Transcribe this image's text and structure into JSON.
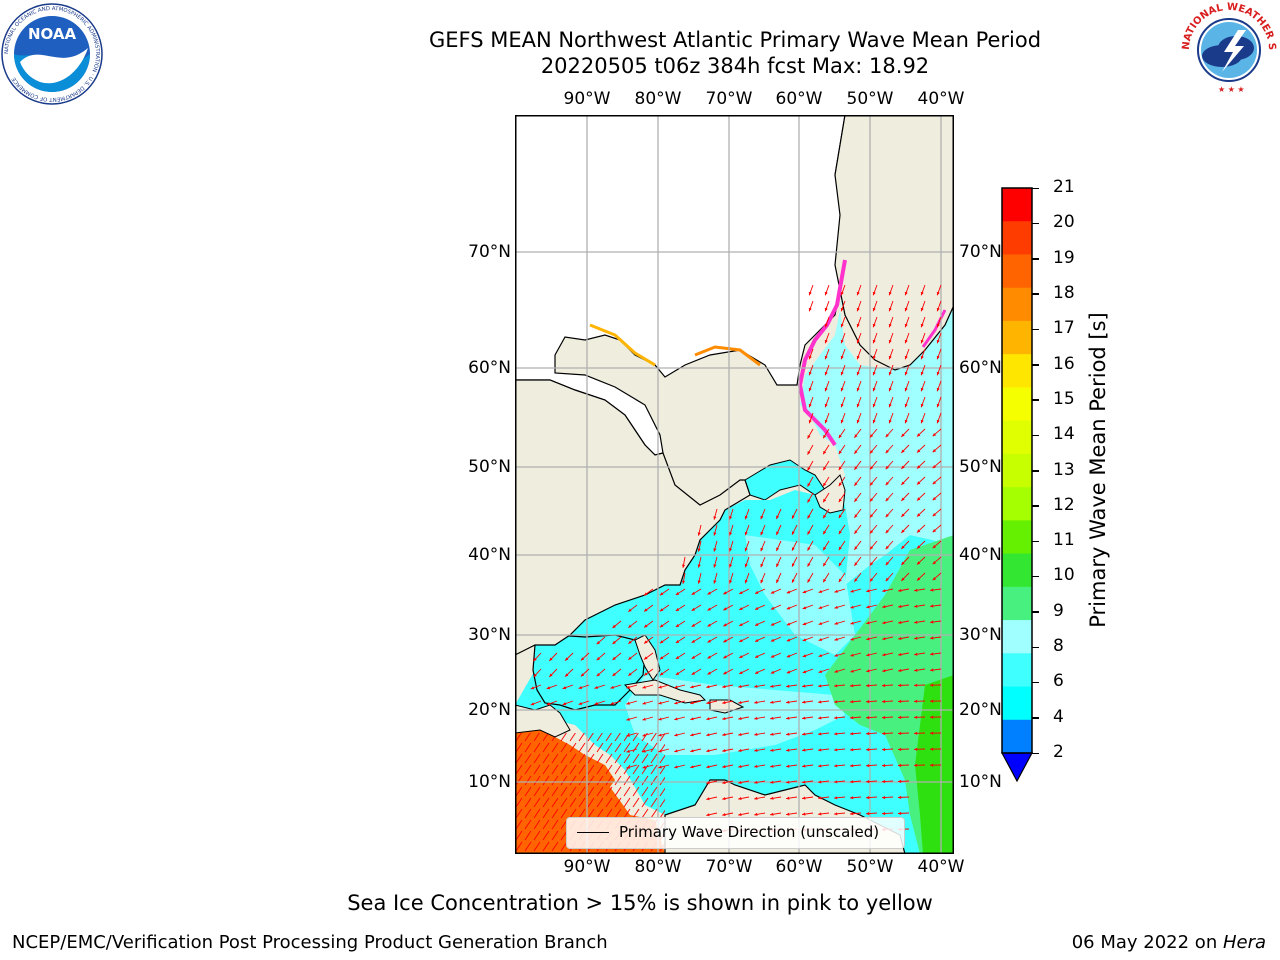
{
  "title": {
    "line1": "GEFS MEAN Northwest Atlantic Primary Wave Mean Period",
    "line2": "20220505 t06z 384h fcst   Max: 18.92"
  },
  "map": {
    "lon_labels": [
      "90°W",
      "80°W",
      "70°W",
      "60°W",
      "50°W",
      "40°W"
    ],
    "lat_labels": [
      "70°N",
      "60°N",
      "50°N",
      "40°N",
      "30°N",
      "20°N",
      "10°N"
    ],
    "legend_label": "Primary Wave Direction (unscaled)",
    "colors": {
      "land": "#efedde",
      "ice_land": "#ffffff",
      "sea_4_6": "#00ffff",
      "sea_6_8": "#40ffff",
      "sea_8_9": "#a0ffff",
      "sea_9_10": "#48f080",
      "sea_10_12": "#2ee010",
      "sea_17_19": "#ff6400",
      "arrows": "#ff0000",
      "ice_edge": "#ff33cc",
      "grid": "#b0b0b0"
    }
  },
  "colorbar": {
    "label": "Primary Wave Mean Period [s]",
    "ticks": [
      "21",
      "20",
      "19",
      "18",
      "17",
      "16",
      "15",
      "14",
      "13",
      "12",
      "11",
      "10",
      "9",
      "8",
      "6",
      "4",
      "2"
    ],
    "colors": [
      "#ff0000",
      "#ff3c00",
      "#ff6400",
      "#ff8c00",
      "#ffb400",
      "#ffe600",
      "#f5ff00",
      "#e0ff00",
      "#c8ff00",
      "#a6ff00",
      "#64f000",
      "#32e632",
      "#48f080",
      "#a0ffff",
      "#40ffff",
      "#00ffff",
      "#0080ff"
    ],
    "extend_color": "#0000ff"
  },
  "note": "Sea Ice Concentration > 15% is shown in pink to yellow",
  "footer": {
    "left": "NCEP/EMC/Verification Post Processing Product Generation Branch",
    "date": "06 May 2022 on ",
    "machine": "Hera"
  },
  "logos": {
    "noaa": "NOAA",
    "nws_arc": "NATIONAL WEATHER SERVICE",
    "noaa_arc": "NATIONAL OCEANIC AND ATMOSPHERIC ADMINISTRATION · U.S. DEPARTMENT OF COMMERCE"
  }
}
